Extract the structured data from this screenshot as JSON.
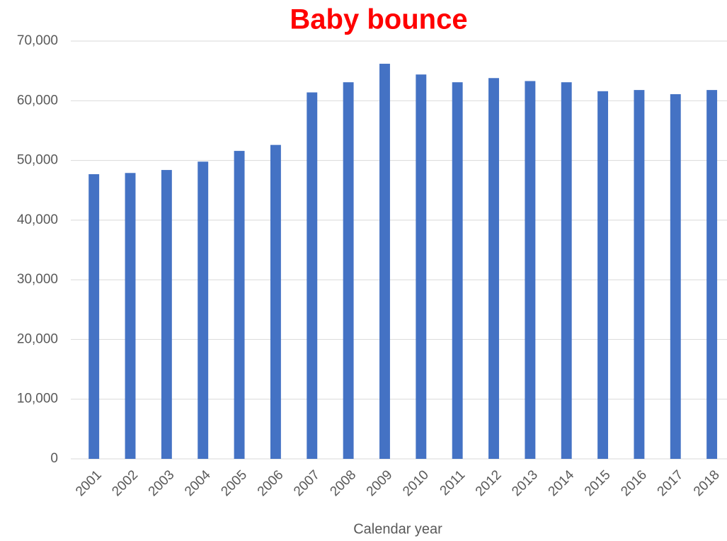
{
  "chart_data": {
    "type": "bar",
    "title": "Baby bounce",
    "x_label": "Calendar year",
    "categories": [
      "2001",
      "2002",
      "2003",
      "2004",
      "2005",
      "2006",
      "2007",
      "2008",
      "2009",
      "2010",
      "2011",
      "2012",
      "2013",
      "2014",
      "2015",
      "2016",
      "2017",
      "2018"
    ],
    "values": [
      47700,
      47900,
      48400,
      49800,
      51600,
      52600,
      61400,
      63100,
      66200,
      64400,
      63100,
      63800,
      63300,
      63100,
      61600,
      61800,
      61100,
      61800
    ],
    "color": "#4472c4",
    "ylim": [
      0,
      70000
    ],
    "yticks": [
      0,
      {
        "value": 10000,
        "label": "10,000"
      },
      {
        "value": 20000,
        "label": "20,000"
      },
      {
        "value": 30000,
        "label": "30,000"
      },
      {
        "value": 40000,
        "label": "40,000"
      },
      {
        "value": 50000,
        "label": "50,000"
      },
      {
        "value": 60000,
        "label": "60,000"
      },
      {
        "value": 70000,
        "label": "70,000"
      }
    ],
    "grid": true
  }
}
